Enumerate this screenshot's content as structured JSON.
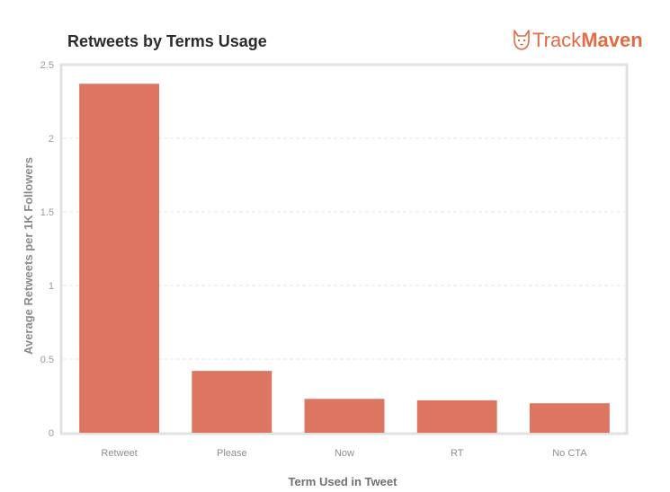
{
  "header": {
    "title": "Retweets by Terms Usage",
    "brand_light": "Track",
    "brand_bold": "Maven",
    "brand_icon": "corgi-logo-icon",
    "brand_color": "#e26a45"
  },
  "chart_data": {
    "type": "bar",
    "title": "Retweets by Terms Usage",
    "xlabel": "Term Used in Tweet",
    "ylabel": "Average Retweets per 1K Followers",
    "categories": [
      "Retweet",
      "Please",
      "Now",
      "RT",
      "No CTA"
    ],
    "values": [
      2.37,
      0.42,
      0.23,
      0.22,
      0.2
    ],
    "ylim": [
      0,
      2.5
    ],
    "yticks": [
      "0",
      "0.5",
      "1",
      "1.5",
      "2",
      "2.5"
    ],
    "grid": true,
    "bar_color": "#dd7660"
  }
}
